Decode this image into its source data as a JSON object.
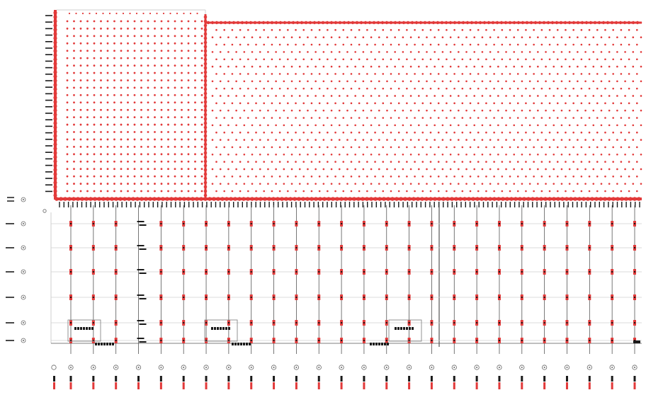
{
  "diagram": {
    "colors": {
      "grid_dot": "#e23a3a",
      "bus": "#e23a3a",
      "wire": "#555555",
      "tag": "#1a1a1a",
      "box": "#888888",
      "light_line": "#cfcfcf"
    },
    "upper_grid": {
      "left_block": {
        "cols": 21,
        "rows": 24
      },
      "right_block": {
        "cols": 55,
        "rows": 24
      }
    },
    "lower_array": {
      "columns": 26,
      "rows": 6,
      "highlight_groups": 3
    },
    "row_labels": [
      "",
      "",
      "",
      "",
      "",
      ""
    ],
    "column_labels": []
  }
}
